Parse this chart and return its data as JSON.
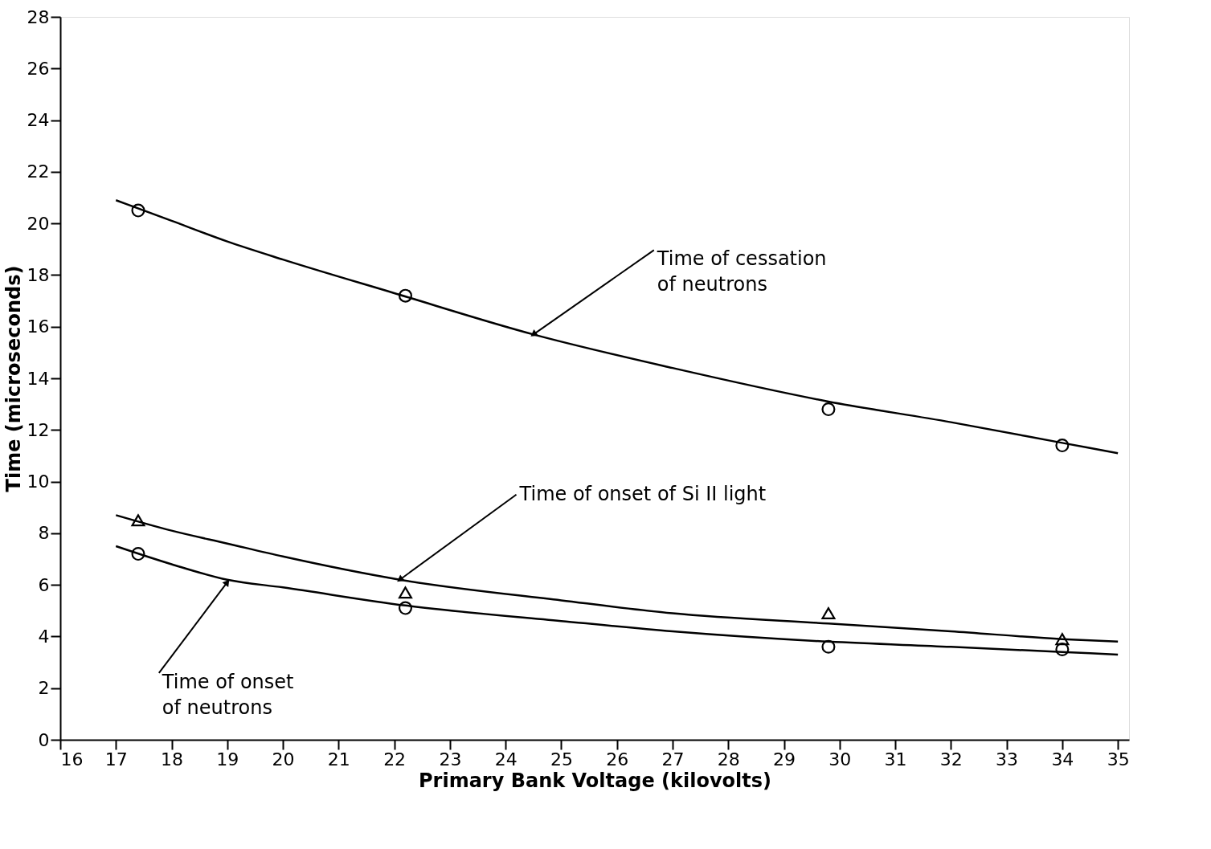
{
  "chart_data": {
    "type": "scatter",
    "xlabel": "Primary Bank Voltage (kilovolts)",
    "ylabel": "Time (microseconds)",
    "xlim": [
      16,
      35.2
    ],
    "ylim": [
      0,
      28
    ],
    "xticks": [
      16,
      17,
      18,
      19,
      20,
      21,
      22,
      23,
      24,
      25,
      26,
      27,
      28,
      29,
      30,
      31,
      32,
      33,
      34,
      35
    ],
    "yticks": [
      0,
      2,
      4,
      6,
      8,
      10,
      12,
      14,
      16,
      18,
      20,
      22,
      24,
      26,
      28
    ],
    "grid": false,
    "series": [
      {
        "type": "line",
        "color": "#000000",
        "marker": "none",
        "line_style": "solid",
        "x": [
          17,
          18,
          19,
          20,
          22,
          24.5,
          27,
          29.8,
          32,
          34,
          35
        ],
        "values": [
          20.9,
          20.1,
          19.3,
          18.6,
          17.3,
          15.7,
          14.4,
          13.1,
          12.3,
          11.5,
          11.1
        ]
      },
      {
        "type": "line",
        "color": "#000000",
        "marker": "none",
        "line_style": "solid",
        "x": [
          17,
          18,
          19,
          20,
          22.1,
          25,
          27,
          29.8,
          32,
          34,
          35
        ],
        "values": [
          8.7,
          8.1,
          7.6,
          7.1,
          6.2,
          5.4,
          4.9,
          4.5,
          4.2,
          3.9,
          3.8
        ]
      },
      {
        "type": "line",
        "color": "#000000",
        "marker": "none",
        "line_style": "solid",
        "x": [
          17,
          18,
          19,
          20,
          22.2,
          25,
          27,
          29.8,
          32,
          34,
          35
        ],
        "values": [
          7.5,
          6.8,
          6.2,
          5.9,
          5.2,
          4.6,
          4.2,
          3.8,
          3.6,
          3.4,
          3.3
        ]
      },
      {
        "color": "#000000",
        "marker": "circle",
        "x": [
          17.4,
          22.2,
          29.8,
          34
        ],
        "values": [
          20.5,
          17.2,
          12.8,
          11.4
        ]
      },
      {
        "color": "#000000",
        "marker": "triangle",
        "x": [
          17.4,
          22.2,
          29.8,
          34
        ],
        "values": [
          8.5,
          5.7,
          4.9,
          3.9
        ]
      },
      {
        "color": "#000000",
        "marker": "circle",
        "x": [
          17.4,
          22.2,
          29.8,
          34
        ],
        "values": [
          7.2,
          5.1,
          3.6,
          3.5
        ]
      }
    ],
    "annotations": [
      {
        "text": "Time of cessation\nof neutrons",
        "x": 24.5,
        "y": 15.7
      },
      {
        "text": "Time of onset of Si II light",
        "x": 22.1,
        "y": 6.2
      },
      {
        "text": "Time of onset\nof neutrons",
        "x": 19.0,
        "y": 6.1
      }
    ]
  }
}
